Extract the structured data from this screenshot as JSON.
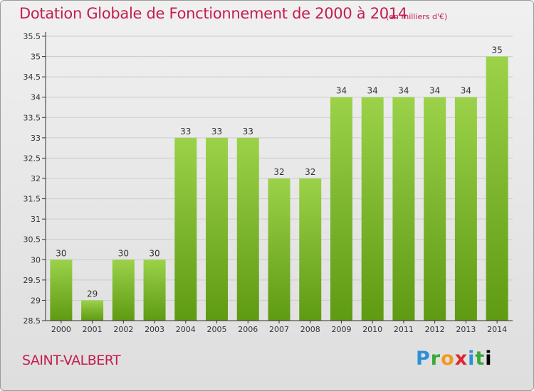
{
  "header": {
    "title": "Dotation Globale de Fonctionnement de 2000 à 2014",
    "unit": "(en milliers d'€)"
  },
  "footer": {
    "commune": "SAINT-VALBERT",
    "logo_text": "Proxiti"
  },
  "colors": {
    "title": "#c21e4e",
    "bar_top": "#9bd24a",
    "bar_bottom": "#5e9a12",
    "axis": "#333333",
    "grid": "#cccccc"
  },
  "chart_data": {
    "type": "bar",
    "title": "Dotation Globale de Fonctionnement de 2000 à 2014",
    "subtitle": "(en milliers d'€)",
    "xlabel": "",
    "ylabel": "",
    "categories": [
      "2000",
      "2001",
      "2002",
      "2003",
      "2004",
      "2005",
      "2006",
      "2007",
      "2008",
      "2009",
      "2010",
      "2011",
      "2012",
      "2013",
      "2014"
    ],
    "values": [
      30,
      29,
      30,
      30,
      33,
      33,
      33,
      32,
      32,
      34,
      34,
      34,
      34,
      34,
      35
    ],
    "data_labels": [
      "30",
      "29",
      "30",
      "30",
      "33",
      "33",
      "33",
      "32",
      "32",
      "34",
      "34",
      "34",
      "34",
      "34",
      "35"
    ],
    "ylim": [
      28.5,
      35.5
    ],
    "yticks": [
      28.5,
      29,
      29.5,
      30,
      30.5,
      31,
      31.5,
      32,
      32.5,
      33,
      33.5,
      34,
      34.5,
      35,
      35.5
    ],
    "ytick_labels": [
      "28.5",
      "29",
      "29.5",
      "30",
      "30.5",
      "31",
      "31.5",
      "32",
      "32.5",
      "33",
      "33.5",
      "34",
      "34.5",
      "35",
      "35.5"
    ],
    "grid": true
  }
}
